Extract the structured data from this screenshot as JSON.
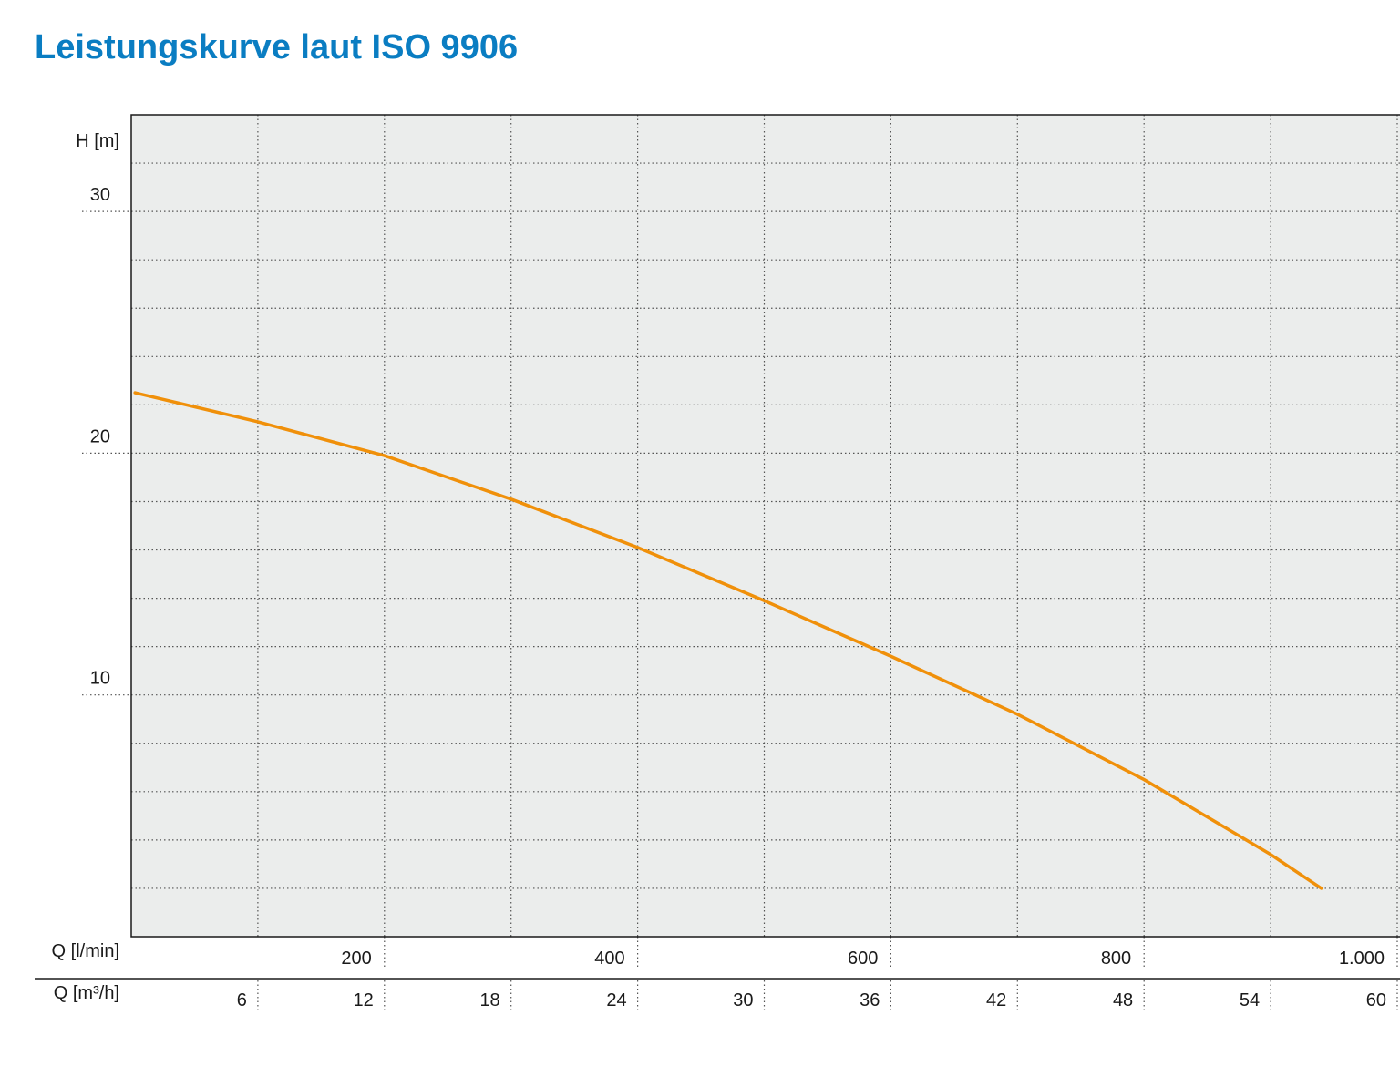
{
  "chart_data": {
    "type": "line",
    "title": "Leistungskurve laut ISO 9906",
    "ylabel": "H [m]",
    "xlabel": "Q [l/min]",
    "x2label": "Q [m³/h]",
    "xlim": [
      0,
      1000
    ],
    "xticks": [
      200,
      400,
      600,
      800,
      {
        "value": 1000,
        "label": "1.000"
      }
    ],
    "x2lim": [
      0,
      60
    ],
    "x2ticks": [
      6,
      12,
      18,
      24,
      30,
      36,
      42,
      48,
      54,
      60
    ],
    "ylim": [
      0,
      34
    ],
    "yticks": [
      10,
      20,
      30
    ],
    "yminor": [
      2,
      4,
      6,
      8,
      12,
      14,
      16,
      18,
      22,
      24,
      26,
      28,
      32
    ],
    "grid": true,
    "background": "#ebedec",
    "series": [
      {
        "color": "#f0900a",
        "x": [
          3,
          100,
          200,
          300,
          400,
          500,
          600,
          700,
          800,
          900,
          940
        ],
        "values": [
          22.5,
          21.3,
          19.9,
          18.1,
          16.1,
          13.9,
          11.6,
          9.2,
          6.5,
          3.4,
          2.0
        ]
      }
    ]
  }
}
